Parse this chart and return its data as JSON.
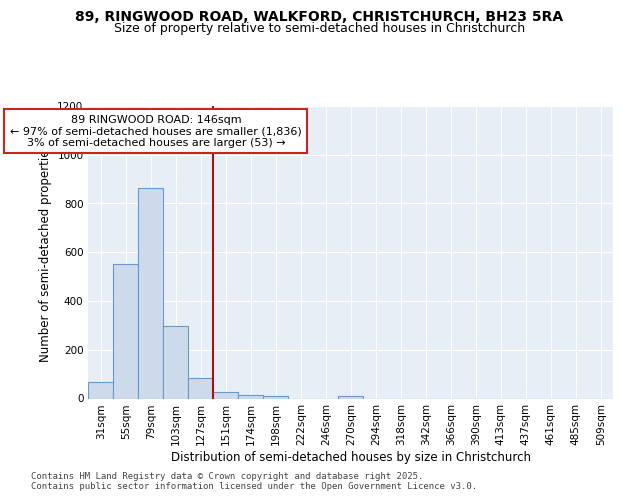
{
  "title_line1": "89, RINGWOOD ROAD, WALKFORD, CHRISTCHURCH, BH23 5RA",
  "title_line2": "Size of property relative to semi-detached houses in Christchurch",
  "xlabel": "Distribution of semi-detached houses by size in Christchurch",
  "ylabel": "Number of semi-detached properties",
  "categories": [
    "31sqm",
    "55sqm",
    "79sqm",
    "103sqm",
    "127sqm",
    "151sqm",
    "174sqm",
    "198sqm",
    "222sqm",
    "246sqm",
    "270sqm",
    "294sqm",
    "318sqm",
    "342sqm",
    "366sqm",
    "390sqm",
    "413sqm",
    "437sqm",
    "461sqm",
    "485sqm",
    "509sqm"
  ],
  "values": [
    68,
    550,
    862,
    298,
    83,
    25,
    13,
    10,
    0,
    0,
    10,
    0,
    0,
    0,
    0,
    0,
    0,
    0,
    0,
    0,
    0
  ],
  "bar_color": "#cddaeb",
  "bar_edge_color": "#6699cc",
  "vline_color": "#aa1111",
  "annotation_text": "89 RINGWOOD ROAD: 146sqm\n← 97% of semi-detached houses are smaller (1,836)\n3% of semi-detached houses are larger (53) →",
  "annotation_box_color": "#ffffff",
  "annotation_box_edge": "#cc2222",
  "ylim": [
    0,
    1200
  ],
  "yticks": [
    0,
    200,
    400,
    600,
    800,
    1000,
    1200
  ],
  "background_color": "#e8eef6",
  "grid_color": "#ffffff",
  "footer_text": "Contains HM Land Registry data © Crown copyright and database right 2025.\nContains public sector information licensed under the Open Government Licence v3.0.",
  "title_fontsize": 10,
  "subtitle_fontsize": 9,
  "axis_label_fontsize": 8.5,
  "tick_fontsize": 7.5,
  "annotation_fontsize": 8,
  "footer_fontsize": 6.5,
  "vline_pos": 4.5
}
